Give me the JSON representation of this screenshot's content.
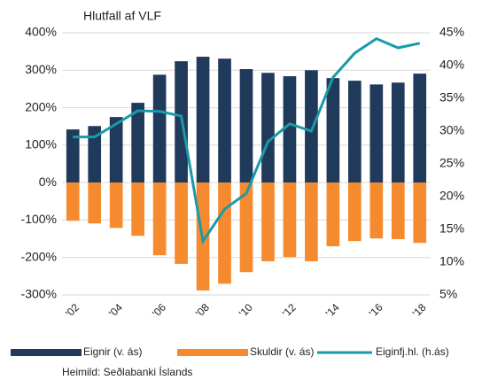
{
  "chart_data": {
    "type": "bar_line",
    "y_label": "Hlutfall af VLF",
    "source": "Heimild: Seðlabanki Íslands",
    "categories": [
      "'02",
      null,
      "'04",
      null,
      "'06",
      null,
      "'08",
      null,
      "'10",
      null,
      "'12",
      null,
      "'14",
      null,
      "'16",
      null,
      "'18"
    ],
    "series": [
      {
        "name": "Eignir (v. ás)",
        "color": "#203a5c",
        "type": "bar",
        "values": [
          142,
          151,
          175,
          213,
          288,
          324,
          336,
          331,
          303,
          293,
          284,
          300,
          279,
          272,
          262,
          267,
          291
        ]
      },
      {
        "name": "Skuldir (v. ás)",
        "color": "#f58b2e",
        "type": "bar",
        "values": [
          -102,
          -109,
          -121,
          -142,
          -194,
          -217,
          -288,
          -270,
          -239,
          -210,
          -199,
          -210,
          -170,
          -156,
          -149,
          -151,
          -161
        ]
      },
      {
        "name": "Eiginfj.hl. (h.ás)",
        "color": "#1a9aa8",
        "type": "line",
        "axis": "y2",
        "values": [
          29.1,
          29.1,
          31.1,
          33.1,
          33,
          32.3,
          13.2,
          18.1,
          20.5,
          28.4,
          31.1,
          30,
          38.2,
          41.9,
          44.1,
          42.7,
          43.4
        ]
      }
    ],
    "ylim": [
      -300,
      400
    ],
    "yticks": [
      {
        "value": -300,
        "label": "-300%"
      },
      {
        "value": -200,
        "label": "-200%"
      },
      {
        "value": -100,
        "label": "-100%"
      },
      {
        "value": 0,
        "label": "0%"
      },
      {
        "value": 100,
        "label": "100%"
      },
      {
        "value": 200,
        "label": "200%"
      },
      {
        "value": 300,
        "label": "300%"
      },
      {
        "value": 400,
        "label": "400%"
      }
    ],
    "y2lim": [
      5,
      45
    ],
    "y2ticks": [
      {
        "value": 5,
        "label": "5%"
      },
      {
        "value": 10,
        "label": "10%"
      },
      {
        "value": 15,
        "label": "15%"
      },
      {
        "value": 20,
        "label": "20%"
      },
      {
        "value": 25,
        "label": "25%"
      },
      {
        "value": 30,
        "label": "30%"
      },
      {
        "value": 35,
        "label": "35%"
      },
      {
        "value": 40,
        "label": "40%"
      },
      {
        "value": 45,
        "label": "45%"
      }
    ],
    "grid": true
  }
}
